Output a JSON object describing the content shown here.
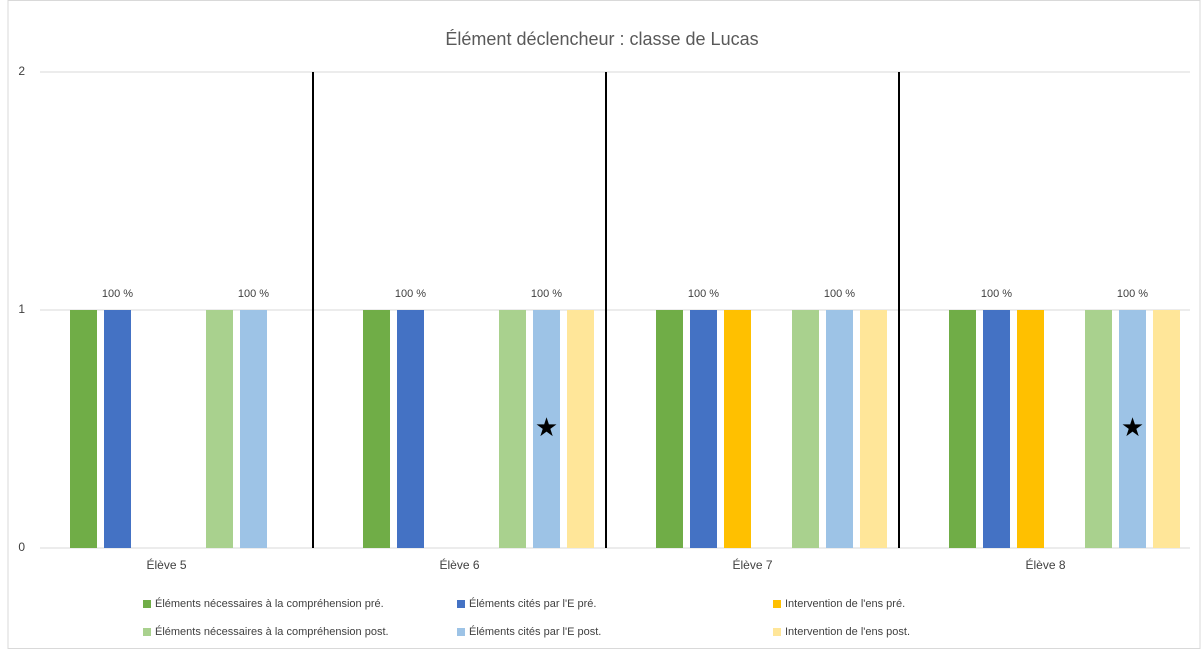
{
  "chart_data": {
    "type": "bar",
    "title": "Élément déclencheur : classe de Lucas",
    "categories": [
      "Élève 5",
      "Élève 6",
      "Élève 7",
      "Élève 8"
    ],
    "series": [
      {
        "name": "Éléments nécessaires à la compréhension pré.",
        "color": "#70ad47",
        "values": [
          1,
          1,
          1,
          1
        ]
      },
      {
        "name": "Éléments cités par l'E pré.",
        "color": "#4472c4",
        "values": [
          1,
          1,
          1,
          1
        ],
        "value_labels": [
          "100 %",
          "100 %",
          "100 %",
          "100 %"
        ]
      },
      {
        "name": "Intervention de l'ens pré.",
        "color": "#ffc000",
        "values": [
          0,
          0,
          1,
          1
        ]
      },
      {
        "name": "Éléments nécessaires à la compréhension post.",
        "color": "#a9d18e",
        "values": [
          1,
          1,
          1,
          1
        ]
      },
      {
        "name": "Éléments cités par l'E post.",
        "color": "#9dc3e6",
        "values": [
          1,
          1,
          1,
          1
        ],
        "value_labels": [
          "100 %",
          "100 %",
          "100 %",
          "100 %"
        ]
      },
      {
        "name": "Intervention de l'ens post.",
        "color": "#ffe699",
        "values": [
          0,
          1,
          1,
          1
        ]
      }
    ],
    "annotations": [
      {
        "text": "★",
        "category": 1,
        "series": 4,
        "y": 0.5
      },
      {
        "text": "★",
        "category": 3,
        "series": 4,
        "y": 0.5
      }
    ],
    "ylim": [
      0,
      2
    ],
    "yticks": [
      0,
      1,
      2
    ],
    "grid": true,
    "legend": "bottom"
  }
}
